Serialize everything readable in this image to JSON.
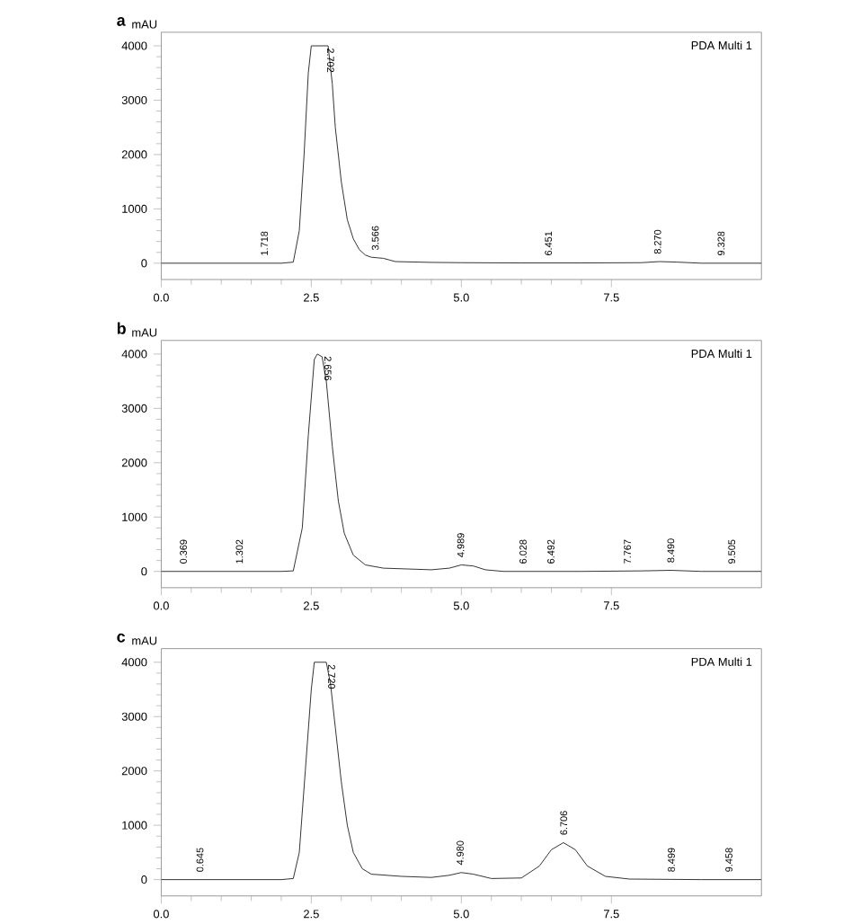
{
  "chart_data": [
    {
      "type": "line",
      "title": "a",
      "ylabel": "mAU",
      "color": "#333333",
      "x": [
        0,
        1.0,
        2.0,
        2.2,
        2.3,
        2.38,
        2.45,
        2.5,
        2.6,
        2.7,
        2.78,
        2.85,
        2.9,
        3.0,
        3.1,
        3.2,
        3.3,
        3.4,
        3.5,
        3.6,
        3.7,
        3.8,
        3.9,
        4.5,
        5.0,
        6.0,
        7.0,
        8.0,
        8.3,
        8.6,
        9.0,
        10.0
      ],
      "values": [
        0,
        0,
        0,
        20,
        600,
        2000,
        3500,
        4000,
        4000,
        4000,
        4000,
        3300,
        2500,
        1500,
        800,
        450,
        250,
        150,
        110,
        100,
        90,
        60,
        30,
        15,
        10,
        5,
        5,
        10,
        30,
        20,
        0,
        0
      ],
      "xlim": [
        0,
        10
      ],
      "ylim": [
        -300,
        4250
      ],
      "xticks": [
        {
          "value": 0,
          "label": "0.0"
        },
        {
          "value": 2.5,
          "label": "2.5"
        },
        {
          "value": 5,
          "label": "5.0"
        },
        {
          "value": 7.5,
          "label": "7.5"
        }
      ],
      "yticks": [
        0,
        1000,
        2000,
        3000,
        4000
      ],
      "annotations": [
        "PDA Multi 1",
        {
          "text": "1.718",
          "x": 1.718,
          "y": 0
        },
        {
          "text": "2.702",
          "x": 2.702,
          "y": 4000
        },
        {
          "text": "3.566",
          "x": 3.566,
          "y": 100
        },
        {
          "text": "6.451",
          "x": 6.451,
          "y": 0
        },
        {
          "text": "8.270",
          "x": 8.27,
          "y": 30
        },
        {
          "text": "9.328",
          "x": 9.328,
          "y": 0
        }
      ]
    },
    {
      "type": "line",
      "title": "b",
      "ylabel": "mAU",
      "color": "#333333",
      "x": [
        0,
        1.0,
        2.0,
        2.2,
        2.35,
        2.45,
        2.55,
        2.6,
        2.68,
        2.75,
        2.85,
        2.95,
        3.05,
        3.2,
        3.4,
        3.7,
        4.5,
        4.8,
        5.0,
        5.2,
        5.4,
        5.7,
        7.0,
        8.0,
        8.5,
        9.0,
        10.0
      ],
      "values": [
        0,
        0,
        0,
        10,
        800,
        2500,
        3900,
        4000,
        3950,
        3500,
        2300,
        1300,
        700,
        300,
        120,
        60,
        30,
        60,
        120,
        100,
        30,
        0,
        0,
        10,
        20,
        0,
        0
      ],
      "xlim": [
        0,
        10
      ],
      "ylim": [
        -300,
        4250
      ],
      "xticks": [
        {
          "value": 0,
          "label": "0.0"
        },
        {
          "value": 2.5,
          "label": "2.5"
        },
        {
          "value": 5,
          "label": "5.0"
        },
        {
          "value": 7.5,
          "label": "7.5"
        }
      ],
      "yticks": [
        0,
        1000,
        2000,
        3000,
        4000
      ],
      "annotations": [
        "PDA Multi 1",
        {
          "text": "0.369",
          "x": 0.369,
          "y": 0
        },
        {
          "text": "1.302",
          "x": 1.302,
          "y": 0
        },
        {
          "text": "2.656",
          "x": 2.656,
          "y": 4000
        },
        {
          "text": "4.989",
          "x": 4.989,
          "y": 120
        },
        {
          "text": "6.028",
          "x": 6.028,
          "y": 0
        },
        {
          "text": "6.492",
          "x": 6.492,
          "y": 0
        },
        {
          "text": "7.767",
          "x": 7.767,
          "y": 0
        },
        {
          "text": "8.490",
          "x": 8.49,
          "y": 20
        },
        {
          "text": "9.505",
          "x": 9.505,
          "y": 0
        }
      ]
    },
    {
      "type": "line",
      "title": "c",
      "ylabel": "mAU",
      "color": "#333333",
      "x": [
        0,
        1.0,
        2.0,
        2.2,
        2.3,
        2.4,
        2.5,
        2.55,
        2.65,
        2.75,
        2.82,
        2.9,
        3.0,
        3.1,
        3.2,
        3.35,
        3.5,
        4.0,
        4.5,
        4.8,
        5.0,
        5.2,
        5.5,
        6.0,
        6.3,
        6.5,
        6.7,
        6.9,
        7.1,
        7.4,
        7.8,
        9.0,
        10.0
      ],
      "values": [
        0,
        0,
        0,
        20,
        500,
        2000,
        3500,
        4000,
        4000,
        4000,
        3600,
        2800,
        1800,
        1000,
        500,
        200,
        100,
        60,
        40,
        80,
        130,
        100,
        20,
        30,
        250,
        550,
        680,
        550,
        250,
        60,
        10,
        0,
        0
      ],
      "xlim": [
        0,
        10
      ],
      "ylim": [
        -300,
        4250
      ],
      "xticks": [
        {
          "value": 0,
          "label": "0.0"
        },
        {
          "value": 2.5,
          "label": "2.5"
        },
        {
          "value": 5,
          "label": "5.0"
        },
        {
          "value": 7.5,
          "label": "7.5"
        }
      ],
      "yticks": [
        0,
        1000,
        2000,
        3000,
        4000
      ],
      "annotations": [
        "PDA Multi 1",
        {
          "text": "0.645",
          "x": 0.645,
          "y": 0
        },
        {
          "text": "2.720",
          "x": 2.72,
          "y": 4000
        },
        {
          "text": "4.980",
          "x": 4.98,
          "y": 130
        },
        {
          "text": "6.706",
          "x": 6.706,
          "y": 680
        },
        {
          "text": "8.499",
          "x": 8.499,
          "y": 0
        },
        {
          "text": "9.458",
          "x": 9.458,
          "y": 0
        }
      ]
    }
  ]
}
